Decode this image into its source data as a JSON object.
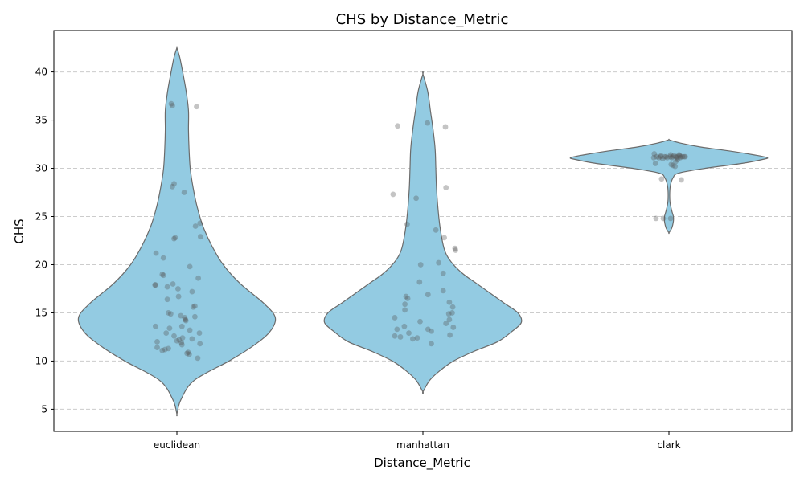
{
  "chart_data": {
    "type": "violin",
    "title": "CHS by Distance_Metric",
    "xlabel": "Distance_Metric",
    "ylabel": "CHS",
    "categories": [
      "euclidean",
      "manhattan",
      "clark"
    ],
    "ylim": [
      2.7,
      44.3
    ],
    "yticks": [
      5,
      10,
      15,
      20,
      25,
      30,
      35,
      40
    ],
    "grid": "y dashed",
    "colors": {
      "violin_fill": "#93cbe2",
      "violin_stroke": "#6b6b6b",
      "points": "#555555",
      "grid": "#cccccc"
    },
    "violins": [
      {
        "category": "euclidean",
        "profile": [
          [
            4.5,
            0.0
          ],
          [
            6,
            0.7
          ],
          [
            8,
            3.0
          ],
          [
            10,
            9.0
          ],
          [
            11.5,
            13.0
          ],
          [
            13,
            16.0
          ],
          [
            14.5,
            17.0
          ],
          [
            16,
            15.0
          ],
          [
            18,
            11.0
          ],
          [
            20,
            8.0
          ],
          [
            22,
            6.0
          ],
          [
            24,
            4.5
          ],
          [
            26,
            3.5
          ],
          [
            28,
            2.8
          ],
          [
            30,
            2.3
          ],
          [
            32,
            2.1
          ],
          [
            34,
            2.0
          ],
          [
            36,
            2.0
          ],
          [
            38,
            1.6
          ],
          [
            40,
            1.0
          ],
          [
            41.5,
            0.5
          ],
          [
            42.5,
            0.0
          ]
        ]
      },
      {
        "category": "manhattan",
        "profile": [
          [
            6.8,
            0.0
          ],
          [
            8,
            1.0
          ],
          [
            9,
            2.5
          ],
          [
            10,
            4.5
          ],
          [
            11,
            7.5
          ],
          [
            12,
            11.0
          ],
          [
            13,
            13.0
          ],
          [
            14,
            14.5
          ],
          [
            15,
            14.0
          ],
          [
            16,
            12.0
          ],
          [
            17,
            10.0
          ],
          [
            18,
            8.0
          ],
          [
            19,
            6.0
          ],
          [
            20,
            4.5
          ],
          [
            21,
            3.5
          ],
          [
            22,
            3.0
          ],
          [
            24,
            2.5
          ],
          [
            26,
            2.2
          ],
          [
            28,
            2.0
          ],
          [
            30,
            1.9
          ],
          [
            32,
            1.8
          ],
          [
            34,
            1.5
          ],
          [
            36,
            1.1
          ],
          [
            38,
            0.7
          ],
          [
            39.8,
            0.0
          ]
        ]
      },
      {
        "category": "clark",
        "profile": [
          [
            23.3,
            0.0
          ],
          [
            23.8,
            3.5
          ],
          [
            24.5,
            5.5
          ],
          [
            25,
            5.5
          ],
          [
            25.6,
            3.5
          ],
          [
            26.5,
            1.3
          ],
          [
            27.5,
            1.0
          ],
          [
            28.3,
            2.0
          ],
          [
            29,
            5.0
          ],
          [
            29.5,
            12.0
          ],
          [
            30,
            45.0
          ],
          [
            30.5,
            90.0
          ],
          [
            30.9,
            115.0
          ],
          [
            31.1,
            122.0
          ],
          [
            31.4,
            105.0
          ],
          [
            31.8,
            75.0
          ],
          [
            32.2,
            40.0
          ],
          [
            32.6,
            15.0
          ],
          [
            32.9,
            2.0
          ],
          [
            33.0,
            0.0
          ]
        ]
      }
    ],
    "points": [
      {
        "category": "euclidean",
        "values": [
          36.7,
          36.5,
          36.4,
          28.4,
          28.1,
          27.5,
          24.3,
          24.0,
          22.9,
          22.8,
          22.7,
          21.2,
          20.7,
          19.8,
          19.0,
          18.9,
          18.6,
          17.9,
          17.9,
          18.0,
          17.7,
          17.5,
          17.2,
          16.7,
          16.4,
          15.7,
          15.6,
          15.0,
          14.9,
          14.7,
          14.6,
          14.5,
          14.3,
          14.2,
          13.6,
          13.6,
          13.4,
          13.2,
          12.9,
          12.9,
          12.6,
          12.4,
          12.3,
          12.2,
          12.1,
          12.0,
          11.9,
          11.8,
          11.7,
          11.4,
          11.3,
          11.2,
          11.1,
          10.9,
          10.8,
          10.7,
          10.3
        ],
        "jitter": [
          -0.1,
          -0.08,
          0.35,
          -0.05,
          -0.08,
          0.13,
          0.41,
          0.33,
          0.42,
          -0.03,
          -0.05,
          -0.37,
          -0.24,
          0.23,
          -0.26,
          -0.24,
          0.38,
          -0.38,
          -0.39,
          -0.07,
          -0.17,
          0.02,
          0.27,
          0.03,
          -0.17,
          0.32,
          0.29,
          -0.15,
          -0.11,
          0.07,
          0.32,
          0.14,
          0.15,
          0.16,
          -0.38,
          0.09,
          -0.13,
          0.23,
          0.4,
          -0.19,
          -0.05,
          0.1,
          0.27,
          0.04,
          0.0,
          -0.35,
          0.08,
          0.41,
          0.09,
          -0.35,
          -0.15,
          -0.21,
          -0.26,
          0.2,
          0.18,
          0.22,
          0.37
        ]
      },
      {
        "category": "manhattan",
        "values": [
          34.7,
          34.4,
          34.3,
          28.0,
          27.3,
          26.9,
          24.2,
          23.6,
          22.8,
          21.7,
          21.5,
          20.2,
          20.0,
          19.1,
          18.2,
          17.3,
          16.9,
          16.7,
          16.5,
          16.1,
          15.9,
          15.6,
          15.3,
          15.0,
          14.9,
          14.5,
          14.3,
          14.1,
          13.9,
          13.6,
          13.5,
          13.3,
          13.3,
          13.1,
          12.9,
          12.7,
          12.6,
          12.5,
          12.4,
          12.3,
          11.8
        ],
        "jitter": [
          0.08,
          -0.45,
          0.4,
          0.41,
          -0.53,
          -0.12,
          -0.28,
          0.23,
          0.38,
          0.57,
          0.58,
          0.28,
          -0.04,
          0.36,
          -0.06,
          0.36,
          0.09,
          -0.3,
          -0.27,
          0.47,
          -0.32,
          0.53,
          -0.32,
          0.52,
          0.46,
          -0.5,
          0.47,
          -0.05,
          0.41,
          -0.33,
          0.54,
          0.09,
          -0.46,
          0.15,
          -0.25,
          0.48,
          -0.5,
          -0.4,
          -0.1,
          -0.18,
          0.15
        ]
      },
      {
        "category": "clark",
        "values": [
          31.5,
          31.4,
          31.4,
          31.3,
          31.3,
          31.3,
          31.2,
          31.2,
          31.2,
          31.2,
          31.2,
          31.2,
          31.2,
          31.2,
          31.2,
          31.2,
          31.2,
          31.2,
          31.1,
          31.1,
          31.1,
          31.1,
          31.1,
          31.1,
          31.0,
          30.9,
          30.7,
          30.5,
          30.4,
          30.3,
          30.2,
          28.9,
          28.8,
          24.8,
          24.8,
          24.8
        ],
        "jitter": [
          -0.26,
          0.03,
          0.18,
          0.09,
          0.19,
          -0.14,
          -0.22,
          -0.15,
          -0.08,
          -0.05,
          0.02,
          0.06,
          0.12,
          0.15,
          0.21,
          0.24,
          0.27,
          0.29,
          -0.27,
          -0.18,
          -0.03,
          0.05,
          0.14,
          0.2,
          -0.11,
          0.15,
          0.12,
          -0.24,
          0.04,
          0.07,
          0.11,
          -0.13,
          0.22,
          -0.23,
          -0.1,
          0.03
        ]
      }
    ]
  }
}
